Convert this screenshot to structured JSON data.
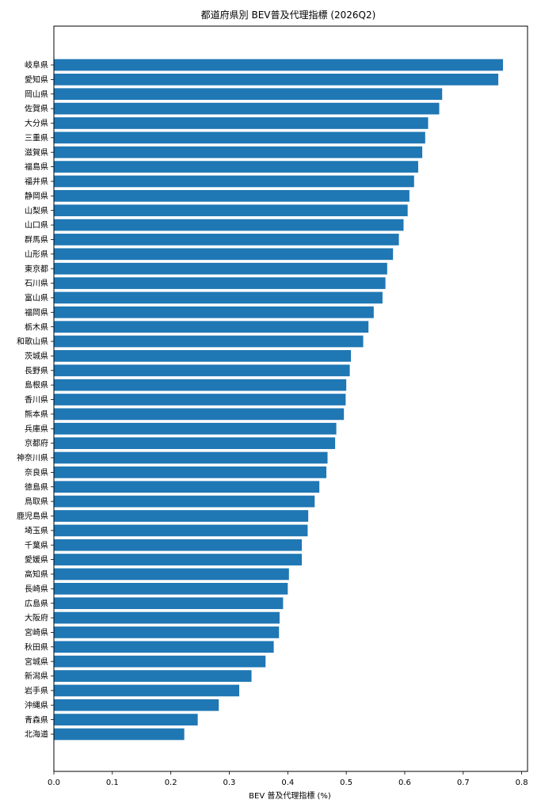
{
  "chart_data": {
    "type": "bar",
    "orientation": "horizontal",
    "title": "都道府県別 BEV普及代理指標 (2026Q2)",
    "xlabel": "BEV 普及代理指標 (%)",
    "ylabel": "",
    "xlim": [
      0,
      0.81
    ],
    "xticks": [
      "0.0",
      "0.1",
      "0.2",
      "0.3",
      "0.4",
      "0.5",
      "0.6",
      "0.7",
      "0.8"
    ],
    "grid": false,
    "bar_color": "#1f77b4",
    "categories": [
      "岐阜県",
      "愛知県",
      "岡山県",
      "佐賀県",
      "大分県",
      "三重県",
      "滋賀県",
      "福島県",
      "福井県",
      "静岡県",
      "山梨県",
      "山口県",
      "群馬県",
      "山形県",
      "東京都",
      "石川県",
      "富山県",
      "福岡県",
      "栃木県",
      "和歌山県",
      "茨城県",
      "長野県",
      "島根県",
      "香川県",
      "熊本県",
      "兵庫県",
      "京都府",
      "神奈川県",
      "奈良県",
      "徳島県",
      "鳥取県",
      "鹿児島県",
      "埼玉県",
      "千葉県",
      "愛媛県",
      "高知県",
      "長崎県",
      "広島県",
      "大阪府",
      "宮崎県",
      "秋田県",
      "宮城県",
      "新潟県",
      "岩手県",
      "沖縄県",
      "青森県",
      "北海道"
    ],
    "values": [
      0.768,
      0.76,
      0.664,
      0.659,
      0.64,
      0.635,
      0.63,
      0.623,
      0.616,
      0.608,
      0.605,
      0.598,
      0.59,
      0.58,
      0.57,
      0.567,
      0.562,
      0.547,
      0.538,
      0.529,
      0.508,
      0.506,
      0.5,
      0.499,
      0.496,
      0.483,
      0.481,
      0.468,
      0.466,
      0.454,
      0.446,
      0.435,
      0.434,
      0.424,
      0.424,
      0.402,
      0.4,
      0.392,
      0.386,
      0.385,
      0.376,
      0.362,
      0.338,
      0.317,
      0.282,
      0.246,
      0.223
    ]
  }
}
